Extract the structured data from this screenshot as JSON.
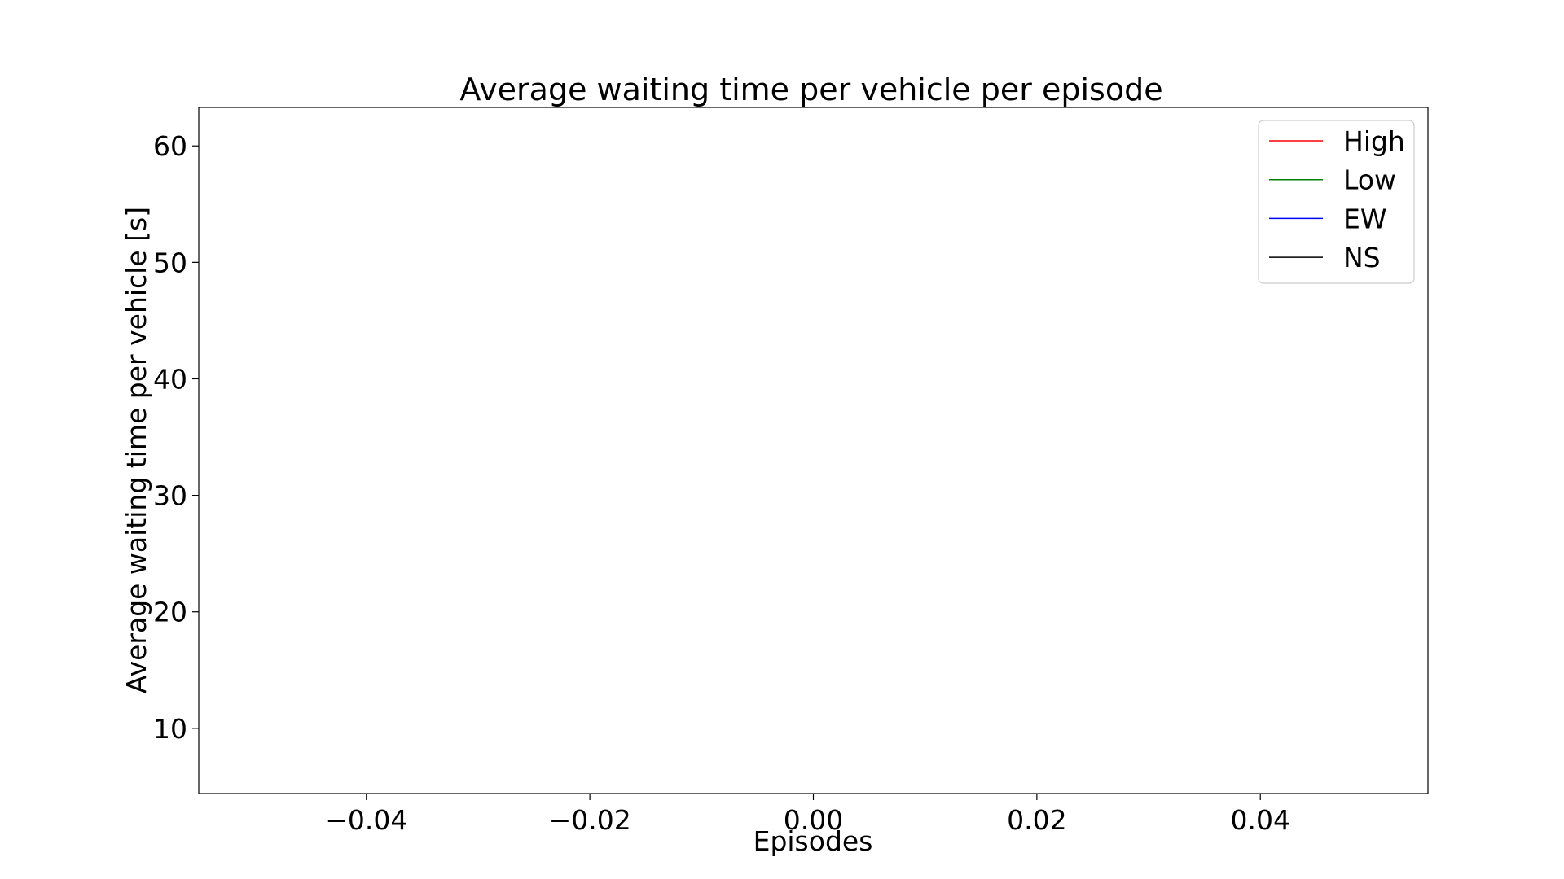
{
  "chart_data": {
    "type": "line",
    "title": "Average waiting time per vehicle per episode",
    "xlabel": "Episodes",
    "ylabel": "Average waiting time per vehicle [s]",
    "xlim": [
      -0.055,
      0.055
    ],
    "ylim": [
      4.4,
      63.3
    ],
    "x_ticks": [
      -0.04,
      -0.02,
      0.0,
      0.02,
      0.04
    ],
    "x_tick_labels": [
      "−0.04",
      "−0.02",
      "0.00",
      "0.02",
      "0.04"
    ],
    "y_ticks": [
      10,
      20,
      30,
      40,
      50,
      60
    ],
    "y_tick_labels": [
      "10",
      "20",
      "30",
      "40",
      "50",
      "60"
    ],
    "grid": false,
    "legend_position": "upper right",
    "series": [
      {
        "name": "High",
        "color": "#ff0000",
        "x": [],
        "y": []
      },
      {
        "name": "Low",
        "color": "#008000",
        "x": [],
        "y": []
      },
      {
        "name": "EW",
        "color": "#0000ff",
        "x": [],
        "y": []
      },
      {
        "name": "NS",
        "color": "#000000",
        "x": [],
        "y": []
      }
    ]
  }
}
